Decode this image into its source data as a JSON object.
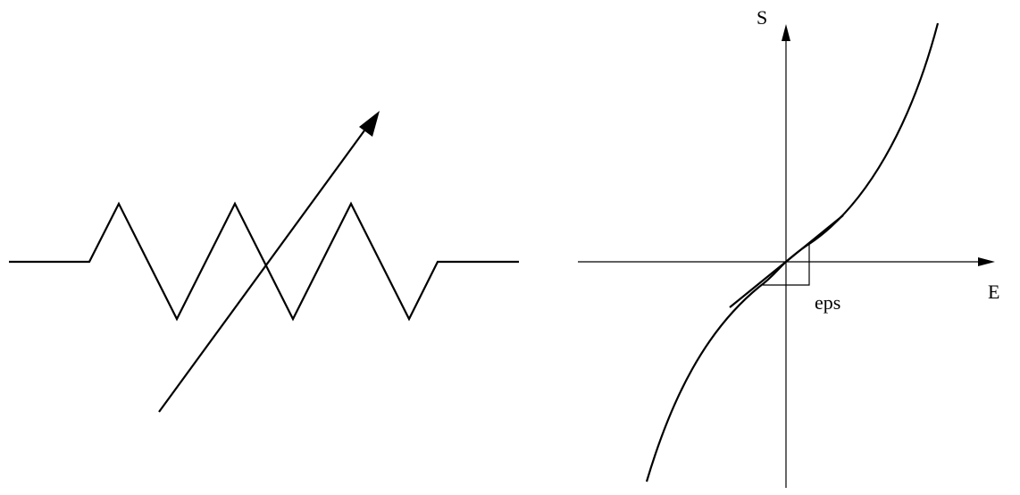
{
  "labels": {
    "y_axis": "S",
    "x_axis": "E",
    "threshold": "eps"
  }
}
